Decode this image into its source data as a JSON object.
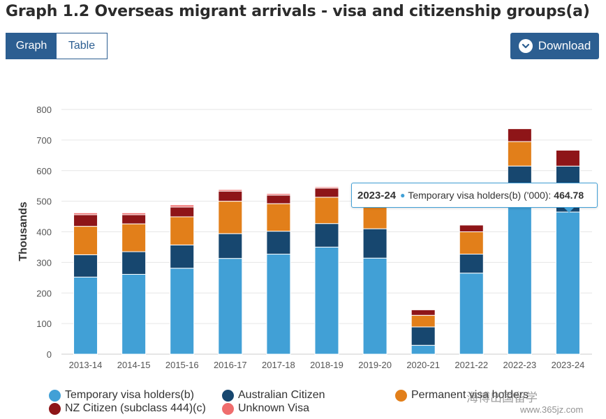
{
  "title": "Graph 1.2 Overseas migrant arrivals - visa and citizenship groups(a)",
  "tabs": [
    {
      "label": "Graph",
      "active": true
    },
    {
      "label": "Table",
      "active": false
    }
  ],
  "download": {
    "label": "Download",
    "icon": "chevron-down-icon"
  },
  "tooltip": {
    "category": "2023-24",
    "series": "Temporary visa holders(b) ('000):",
    "value": "464.78"
  },
  "watermark": {
    "text": "海博出国留学",
    "site": "www.365jz.com"
  },
  "colors": {
    "accent": "#2c5e91",
    "temporary": "#41a0d6",
    "australian": "#17476f",
    "permanent": "#e27f1a",
    "nz": "#8e1518",
    "unknown": "#ef6d6d"
  },
  "chart_data": {
    "type": "bar",
    "stacked": true,
    "ylabel": "Thousands",
    "xlabel": "",
    "ylim": [
      0,
      800
    ],
    "yticks": [
      0,
      100,
      200,
      300,
      400,
      500,
      600,
      700,
      800
    ],
    "grid": true,
    "legend_position": "bottom",
    "categories": [
      "2013-14",
      "2014-15",
      "2015-16",
      "2016-17",
      "2017-18",
      "2018-19",
      "2019-20",
      "2020-21",
      "2021-22",
      "2022-23",
      "2023-24"
    ],
    "series": [
      {
        "name": "Temporary visa holders(b)",
        "color": "#41a0d6",
        "values": [
          252,
          261,
          281,
          313,
          327,
          350,
          314,
          29,
          265,
          520,
          464.78
        ]
      },
      {
        "name": "Australian Citizen",
        "color": "#17476f",
        "values": [
          73,
          74,
          76,
          81,
          75,
          77,
          96,
          60,
          62,
          95,
          150
        ]
      },
      {
        "name": "Permanent visa holders",
        "color": "#e27f1a",
        "values": [
          93,
          91,
          92,
          106,
          90,
          86,
          83,
          38,
          73,
          80,
          0
        ]
      },
      {
        "name": "NZ Citizen (subclass 444)(c)",
        "color": "#8e1518",
        "values": [
          38,
          30,
          32,
          33,
          28,
          30,
          0,
          18,
          22,
          42,
          52
        ]
      },
      {
        "name": "Unknown Visa",
        "color": "#ef6d6d",
        "values": [
          6,
          6,
          7,
          5,
          5,
          4,
          0,
          0,
          0,
          0,
          0
        ]
      }
    ]
  }
}
